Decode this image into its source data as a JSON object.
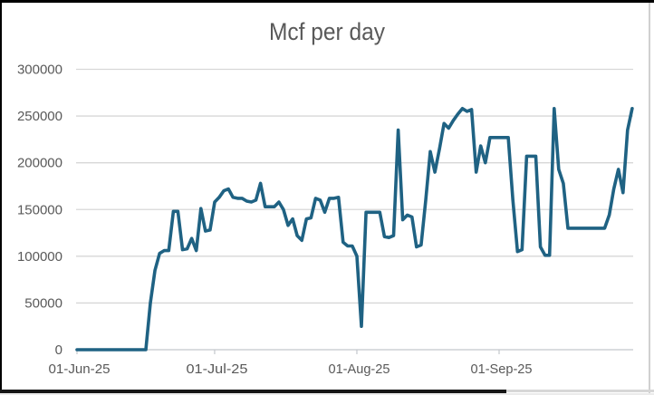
{
  "chart_data": {
    "type": "line",
    "title": "Mcf per day",
    "x_label": "",
    "y_label": "",
    "x_unit": "day",
    "dates": [
      "2025-06-01",
      "2025-06-02",
      "2025-06-03",
      "2025-06-04",
      "2025-06-05",
      "2025-06-06",
      "2025-06-07",
      "2025-06-08",
      "2025-06-09",
      "2025-06-10",
      "2025-06-11",
      "2025-06-12",
      "2025-06-13",
      "2025-06-14",
      "2025-06-15",
      "2025-06-16",
      "2025-06-17",
      "2025-06-18",
      "2025-06-19",
      "2025-06-20",
      "2025-06-21",
      "2025-06-22",
      "2025-06-23",
      "2025-06-24",
      "2025-06-25",
      "2025-06-26",
      "2025-06-27",
      "2025-06-28",
      "2025-06-29",
      "2025-06-30",
      "2025-07-01",
      "2025-07-02",
      "2025-07-03",
      "2025-07-04",
      "2025-07-05",
      "2025-07-06",
      "2025-07-07",
      "2025-07-08",
      "2025-07-09",
      "2025-07-10",
      "2025-07-11",
      "2025-07-12",
      "2025-07-13",
      "2025-07-14",
      "2025-07-15",
      "2025-07-16",
      "2025-07-17",
      "2025-07-18",
      "2025-07-19",
      "2025-07-20",
      "2025-07-21",
      "2025-07-22",
      "2025-07-23",
      "2025-07-24",
      "2025-07-25",
      "2025-07-26",
      "2025-07-27",
      "2025-07-28",
      "2025-07-29",
      "2025-07-30",
      "2025-07-31",
      "2025-08-01",
      "2025-08-02",
      "2025-08-03",
      "2025-08-04",
      "2025-08-05",
      "2025-08-06",
      "2025-08-07",
      "2025-08-08",
      "2025-08-09",
      "2025-08-10",
      "2025-08-11",
      "2025-08-12",
      "2025-08-13",
      "2025-08-14",
      "2025-08-15",
      "2025-08-16",
      "2025-08-17",
      "2025-08-18",
      "2025-08-19",
      "2025-08-20",
      "2025-08-21",
      "2025-08-22",
      "2025-08-23",
      "2025-08-24",
      "2025-08-25",
      "2025-08-26",
      "2025-08-27",
      "2025-08-28",
      "2025-08-29",
      "2025-08-30",
      "2025-08-31",
      "2025-09-01",
      "2025-09-02",
      "2025-09-03",
      "2025-09-04",
      "2025-09-05",
      "2025-09-06",
      "2025-09-07",
      "2025-09-08",
      "2025-09-09",
      "2025-09-10",
      "2025-09-11",
      "2025-09-12",
      "2025-09-13",
      "2025-09-14",
      "2025-09-15",
      "2025-09-16",
      "2025-09-17",
      "2025-09-18",
      "2025-09-19",
      "2025-09-20",
      "2025-09-21",
      "2025-09-22",
      "2025-09-23",
      "2025-09-24",
      "2025-09-25",
      "2025-09-26",
      "2025-09-27",
      "2025-09-28",
      "2025-09-29",
      "2025-09-30"
    ],
    "values": [
      0,
      0,
      0,
      0,
      0,
      0,
      0,
      0,
      0,
      0,
      0,
      0,
      0,
      0,
      0,
      0,
      50000,
      85000,
      103000,
      106000,
      106000,
      148000,
      148000,
      107000,
      108000,
      119000,
      106000,
      151000,
      127000,
      128000,
      158000,
      163000,
      170000,
      172000,
      163000,
      162000,
      162000,
      159000,
      158000,
      160000,
      178000,
      153000,
      153000,
      153000,
      158000,
      150000,
      133000,
      140000,
      122000,
      117000,
      140000,
      141000,
      162000,
      160000,
      147000,
      162000,
      162000,
      163000,
      115000,
      111000,
      111000,
      100000,
      25000,
      147000,
      147000,
      147000,
      147000,
      121000,
      120000,
      122000,
      235000,
      139000,
      144000,
      142000,
      110000,
      112000,
      160000,
      212000,
      190000,
      215000,
      242000,
      237000,
      245000,
      252000,
      258000,
      255000,
      257000,
      190000,
      218000,
      200000,
      227000,
      227000,
      227000,
      227000,
      227000,
      160000,
      105000,
      107000,
      207000,
      207000,
      207000,
      110000,
      101000,
      101000,
      258000,
      193000,
      178000,
      130000,
      130000,
      130000,
      130000,
      130000,
      130000,
      130000,
      130000,
      130000,
      144000,
      172000,
      193000,
      168000,
      235000,
      258000
    ],
    "ylim": [
      0,
      300000
    ],
    "ytick_interval": 50000,
    "ytick_labels": [
      "0",
      "50000",
      "100000",
      "150000",
      "200000",
      "250000",
      "300000"
    ],
    "xtick_labels": [
      "01-Jun-25",
      "01-Jul-25",
      "01-Aug-25",
      "01-Sep-25"
    ],
    "xtick_day_offsets": [
      0,
      30,
      61,
      92
    ],
    "grid": true,
    "legend": "none",
    "colors": {
      "line": "#1F6283",
      "gridline": "#D7D7D7",
      "axis": "#C3C7CC",
      "tick": "#C3C7CC",
      "label": "#595959",
      "title": "#595959"
    }
  },
  "frame": {
    "top_border_color": "#000000",
    "left_border_color": "#000000",
    "right_border_color": "#D0D0D0",
    "bottom_bar_color": "#161616",
    "bottom_band_color": "#D7D7D7",
    "bottom_strip_color": "#EBEBEB",
    "background": "#FFFFFF"
  }
}
